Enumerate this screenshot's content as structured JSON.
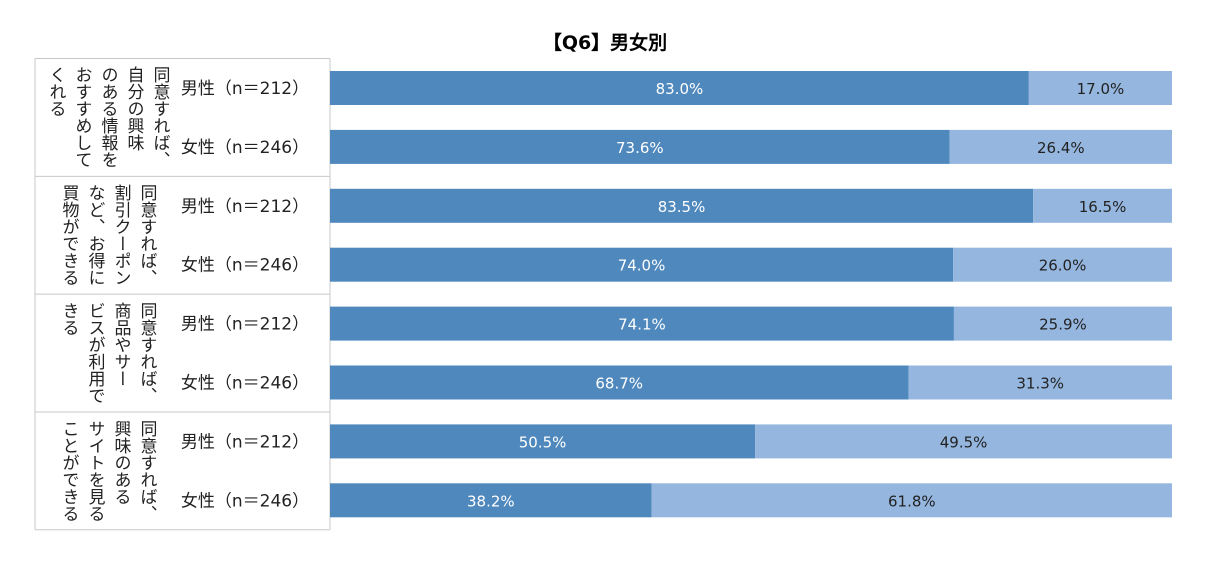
{
  "colors": {
    "primary": "#4f88bd",
    "secondary": "#95b6df",
    "grid": "#c8c8c8"
  },
  "chart_data": {
    "type": "bar",
    "stacked": true,
    "percent": true,
    "title": "【Q6】男女別",
    "xlim": [
      0,
      100
    ],
    "groups": [
      {
        "label_lines": [
          "同意すれば、",
          "自分の興味",
          "のある情報を",
          "おすすめして",
          "くれる"
        ],
        "rows": [
          {
            "label": "男性（n＝212）",
            "values": [
              83.0,
              17.0
            ],
            "value_labels": [
              "83.0%",
              "17.0%"
            ]
          },
          {
            "label": "女性（n＝246）",
            "values": [
              73.6,
              26.4
            ],
            "value_labels": [
              "73.6%",
              "26.4%"
            ]
          }
        ]
      },
      {
        "label_lines": [
          "同意すれば、",
          "割引クーポン",
          "など、お得に",
          "買物ができる"
        ],
        "rows": [
          {
            "label": "男性（n＝212）",
            "values": [
              83.5,
              16.5
            ],
            "value_labels": [
              "83.5%",
              "16.5%"
            ]
          },
          {
            "label": "女性（n＝246）",
            "values": [
              74.0,
              26.0
            ],
            "value_labels": [
              "74.0%",
              "26.0%"
            ]
          }
        ]
      },
      {
        "label_lines": [
          "同意すれば、",
          "商品やサー",
          "ビスが利用で",
          "きる"
        ],
        "rows": [
          {
            "label": "男性（n＝212）",
            "values": [
              74.1,
              25.9
            ],
            "value_labels": [
              "74.1%",
              "25.9%"
            ]
          },
          {
            "label": "女性（n＝246）",
            "values": [
              68.7,
              31.3
            ],
            "value_labels": [
              "68.7%",
              "31.3%"
            ]
          }
        ]
      },
      {
        "label_lines": [
          "同意すれば、",
          "興味のある",
          "サイトを見る",
          "ことができる"
        ],
        "rows": [
          {
            "label": "男性（n＝212）",
            "values": [
              50.5,
              49.5
            ],
            "value_labels": [
              "50.5%",
              "49.5%"
            ]
          },
          {
            "label": "女性（n＝246）",
            "values": [
              38.2,
              61.8
            ],
            "value_labels": [
              "38.2%",
              "61.8%"
            ]
          }
        ]
      }
    ]
  }
}
